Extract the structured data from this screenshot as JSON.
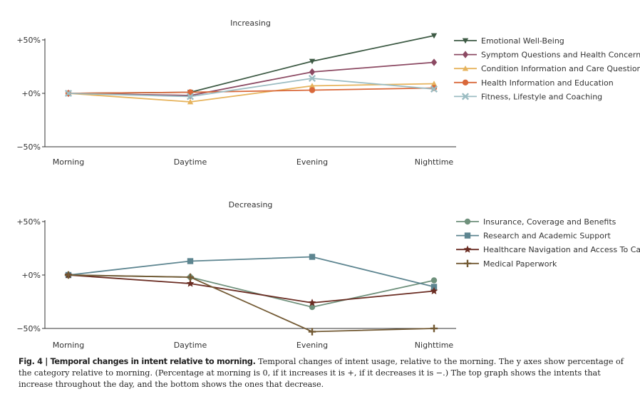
{
  "chart_data": [
    {
      "type": "line",
      "title": "Increasing",
      "categories": [
        "Morning",
        "Daytime",
        "Evening",
        "Nighttime"
      ],
      "yticks": [
        "+50%",
        "+0%",
        "−50%"
      ],
      "ylim": [
        -50,
        50
      ],
      "legend": "right",
      "series": [
        {
          "name": "Emotional Well-Being",
          "values": [
            0,
            1,
            30,
            54
          ],
          "color": "#3d5a44",
          "marker": "triangle-down"
        },
        {
          "name": "Symptom Questions and Health Concerns",
          "values": [
            0,
            -2,
            20,
            29
          ],
          "color": "#8c4a63",
          "marker": "diamond"
        },
        {
          "name": "Condition Information and Care Questions",
          "values": [
            0,
            -8,
            7,
            9
          ],
          "color": "#e6b35c",
          "marker": "triangle-up"
        },
        {
          "name": "Health Information and Education",
          "values": [
            0,
            1,
            3,
            5
          ],
          "color": "#d9683a",
          "marker": "circle"
        },
        {
          "name": "Fitness, Lifestyle and Coaching",
          "values": [
            0,
            -3,
            14,
            4
          ],
          "color": "#9bbcc2",
          "marker": "x"
        }
      ]
    },
    {
      "type": "line",
      "title": "Decreasing",
      "categories": [
        "Morning",
        "Daytime",
        "Evening",
        "Nighttime"
      ],
      "yticks": [
        "+50%",
        "+0%",
        "−50%"
      ],
      "ylim": [
        -50,
        50
      ],
      "legend": "right",
      "series": [
        {
          "name": "Insurance, Coverage and Benefits",
          "values": [
            0,
            -2,
            -30,
            -5
          ],
          "color": "#6f917c",
          "marker": "circle"
        },
        {
          "name": "Research and Academic Support",
          "values": [
            0,
            13,
            17,
            -11
          ],
          "color": "#5d8590",
          "marker": "square"
        },
        {
          "name": "Healthcare Navigation and Access To Care",
          "values": [
            0,
            -8,
            -26,
            -15
          ],
          "color": "#6a2c22",
          "marker": "star"
        },
        {
          "name": "Medical Paperwork",
          "values": [
            0,
            -2,
            -53,
            -50
          ],
          "color": "#735a34",
          "marker": "plus"
        }
      ]
    }
  ],
  "caption": {
    "label": "Fig. 4 | Temporal changes in intent relative to morning.",
    "text": " Temporal changes of intent usage, relative to the morning. The y axes show percentage of the category relative to morning. (Percentage at morning is 0, if it increases it is +, if it decreases it is −.) The top graph shows the intents that increase throughout the day, and the bottom shows the ones that decrease."
  }
}
